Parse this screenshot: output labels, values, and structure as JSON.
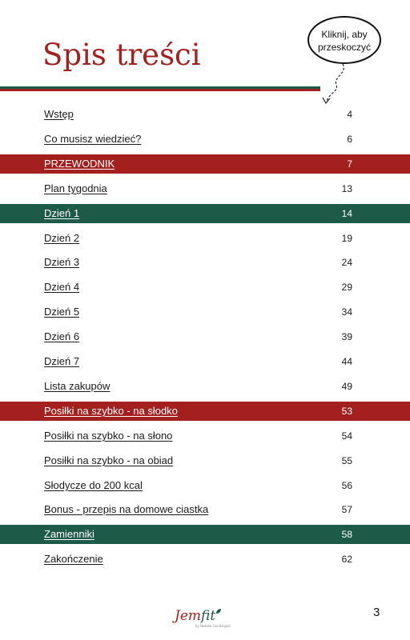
{
  "header": {
    "title": "Spis treści",
    "bubble_line1": "Kliknij, aby",
    "bubble_line2": "przeskoczyć"
  },
  "toc": [
    {
      "label": "Wstęp",
      "page": "4",
      "highlight": ""
    },
    {
      "label": "Co musisz wiedzieć?",
      "page": "6",
      "highlight": ""
    },
    {
      "label": "PRZEWODNIK",
      "page": "7",
      "highlight": "red"
    },
    {
      "label": "Plan tygodnia",
      "page": "13",
      "highlight": ""
    },
    {
      "label": "Dzień 1",
      "page": "14",
      "highlight": "green"
    },
    {
      "label": "Dzień 2",
      "page": "19",
      "highlight": ""
    },
    {
      "label": "Dzień 3",
      "page": "24",
      "highlight": ""
    },
    {
      "label": "Dzień 4",
      "page": "29",
      "highlight": ""
    },
    {
      "label": "Dzień 5",
      "page": "34",
      "highlight": ""
    },
    {
      "label": "Dzień 6",
      "page": "39",
      "highlight": ""
    },
    {
      "label": "Dzień 7",
      "page": "44",
      "highlight": ""
    },
    {
      "label": "Lista zakupów",
      "page": "49",
      "highlight": ""
    },
    {
      "label": "Posiłki na szybko - na słodko",
      "page": "53",
      "highlight": "red"
    },
    {
      "label": "Posiłki na szybko - na słono",
      "page": "54",
      "highlight": ""
    },
    {
      "label": "Posiłki na szybko - na obiad",
      "page": "55",
      "highlight": ""
    },
    {
      "label": "Słodycze do 200 kcal",
      "page": "56",
      "highlight": ""
    },
    {
      "label": "Bonus - przepis na domowe ciastka",
      "page": "57",
      "highlight": ""
    },
    {
      "label": "Zamienniki",
      "page": "58",
      "highlight": "green"
    },
    {
      "label": "Zakończenie",
      "page": "62",
      "highlight": ""
    }
  ],
  "footer": {
    "logo_part1": "Jem",
    "logo_part2": "fit",
    "logo_sub": "by Natalia Gondzigaill",
    "page_number": "3"
  },
  "colors": {
    "red": "#a3201e",
    "green": "#1e5a48"
  },
  "icons": {
    "bubble_arrow": "dashed-curved-arrow-icon",
    "logo_leaf": "leaf-icon"
  }
}
